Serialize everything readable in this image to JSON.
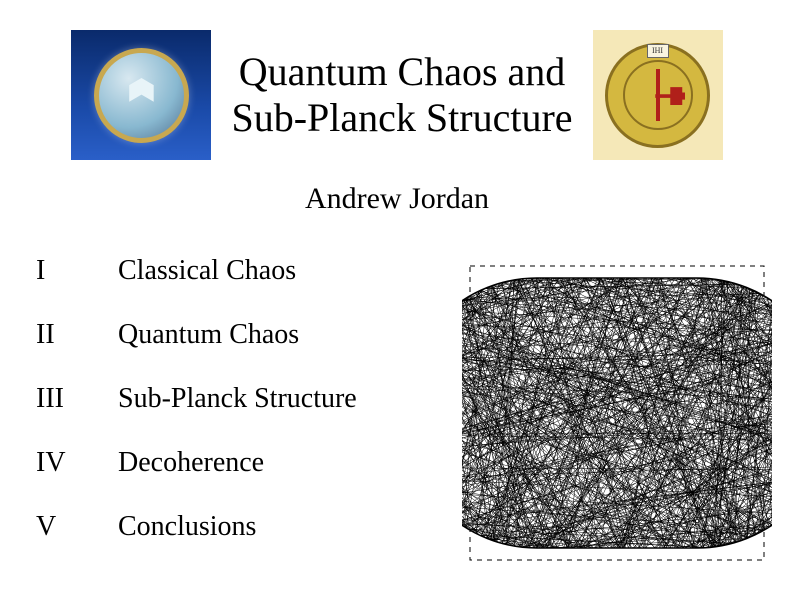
{
  "title_line1": "Quantum Chaos and",
  "title_line2": "Sub-Planck Structure",
  "author": "Andrew Jordan",
  "outline": [
    {
      "roman": "I",
      "label": "Classical Chaos"
    },
    {
      "roman": "II",
      "label": "Quantum Chaos"
    },
    {
      "roman": "III",
      "label": "Sub-Planck Structure"
    },
    {
      "roman": "IV",
      "label": "Decoherence"
    },
    {
      "roman": "V",
      "label": "Conclusions"
    }
  ],
  "logos": {
    "left": {
      "name": "uc-santa-barbara-seal",
      "bg_gradient": [
        "#0a2a6b",
        "#1a4aa8",
        "#2a5fc8"
      ],
      "ring": "#c8a850"
    },
    "right": {
      "name": "schola-genevensis-seal",
      "bg": "#f5e8b8",
      "seal": "#d4b840",
      "accent": "#b0201a",
      "ihs_label": "IHI"
    }
  },
  "figure": {
    "type": "chaotic-billiard-trajectory",
    "description": "stadium-billiard dense classical trajectory",
    "stroke": "#000000",
    "background": "#ffffff",
    "boundary_shape": "stadium",
    "line_width": 0.5,
    "segment_count": 800,
    "bbox_dash": "4 4"
  },
  "colors": {
    "page_bg": "#ffffff",
    "text": "#000000"
  },
  "typography": {
    "title_fontsize": 40,
    "author_fontsize": 30,
    "outline_fontsize": 28,
    "font_family": "Times New Roman"
  }
}
